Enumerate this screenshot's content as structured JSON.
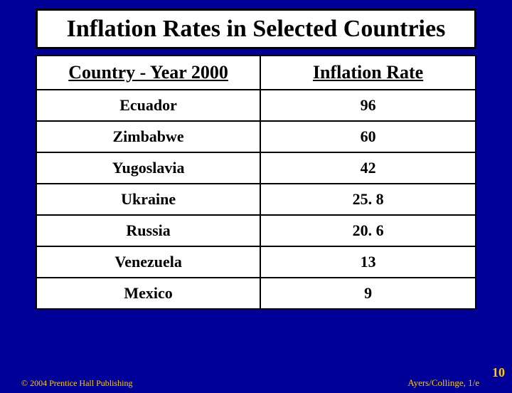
{
  "slide": {
    "background_color": "#000099",
    "title": "Inflation Rates in Selected Countries",
    "title_fontsize": 34,
    "title_box_bg": "#ffffff",
    "title_box_border": "#000000"
  },
  "table": {
    "type": "table",
    "border_color": "#000000",
    "cell_bg": "#ffffff",
    "header_fontsize": 26,
    "cell_fontsize": 22,
    "columns": [
      "Country - Year 2000",
      "Inflation Rate"
    ],
    "rows": [
      [
        "Ecuador",
        "96"
      ],
      [
        "Zimbabwe",
        "60"
      ],
      [
        "Yugoslavia",
        "42"
      ],
      [
        "Ukraine",
        "25. 8"
      ],
      [
        "Russia",
        "20. 6"
      ],
      [
        "Venezuela",
        "13"
      ],
      [
        "Mexico",
        "9"
      ]
    ]
  },
  "footer": {
    "left": "© 2004 Prentice Hall Publishing",
    "right": "Ayers/Collinge, 1/e",
    "page_number": "10",
    "text_color": "#ffcc00"
  }
}
